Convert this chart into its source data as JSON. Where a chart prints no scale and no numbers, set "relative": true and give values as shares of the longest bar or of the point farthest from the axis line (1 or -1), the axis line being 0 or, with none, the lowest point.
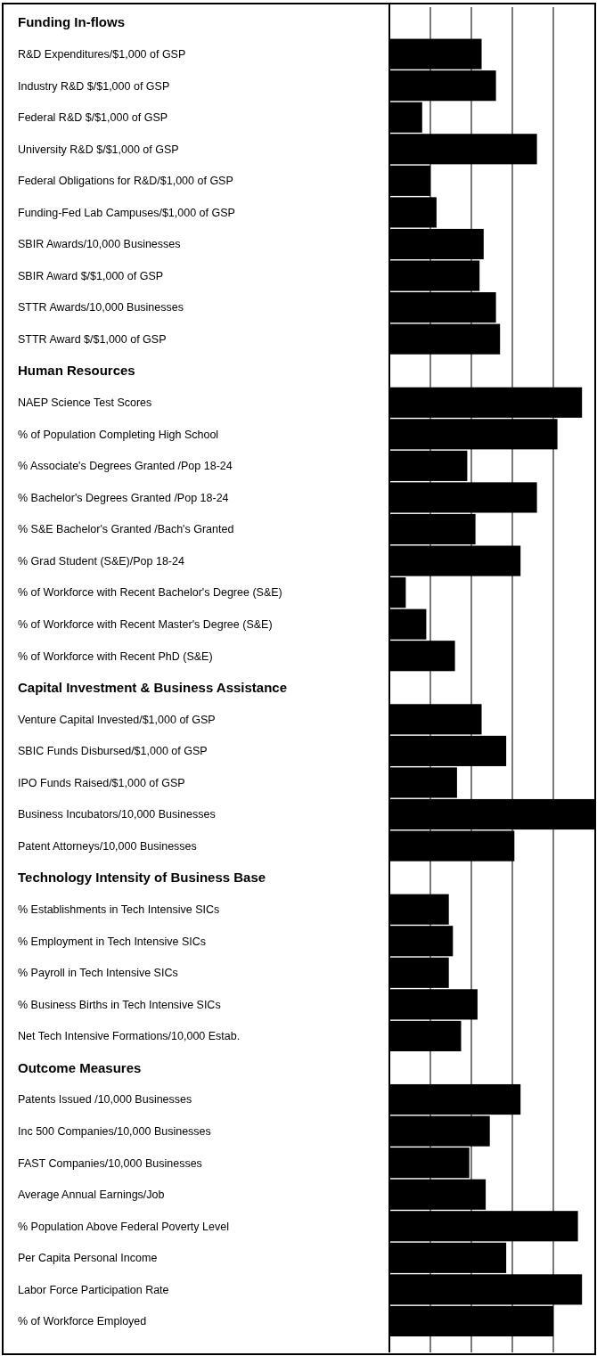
{
  "chart_data": {
    "type": "bar",
    "orientation": "horizontal",
    "relative": true,
    "grid": "x",
    "color": "#000000",
    "categories": [
      "Funding In-flows",
      "R&D Expenditures/$1,000 of GSP",
      "Industry R&D $/$1,000 of GSP",
      "Federal R&D $/$1,000 of GSP",
      "University R&D $/$1,000 of GSP",
      "Federal Obligations for R&D/$1,000 of GSP",
      "Funding-Fed Lab Campuses/$1,000 of GSP",
      "SBIR Awards/10,000 Businesses",
      "SBIR Award $/$1,000 of GSP",
      "STTR Awards/10,000 Businesses",
      "STTR Award $/$1,000 of GSP",
      "Human Resources",
      "NAEP Science Test Scores",
      "% of Population Completing High School",
      "% Associate's Degrees Granted /Pop 18-24",
      "% Bachelor's Degrees Granted /Pop 18-24",
      "% S&E Bachelor's Granted /Bach's Granted",
      "% Grad Student (S&E)/Pop 18-24",
      "% of Workforce with Recent Bachelor's Degree (S&E)",
      "% of Workforce with Recent Master's Degree (S&E)",
      "% of Workforce with Recent PhD (S&E)",
      "Capital Investment & Business Assistance",
      "Venture Capital Invested/$1,000 of GSP",
      "SBIC Funds Disbursed/$1,000 of GSP",
      "IPO Funds Raised/$1,000 of GSP",
      "Business Incubators/10,000 Businesses",
      "Patent Attorneys/10,000 Businesses",
      "Technology Intensity of Business Base",
      "% Establishments in Tech Intensive SICs",
      "% Employment in Tech Intensive SICs",
      "% Payroll in Tech Intensive SICs",
      "% Business Births in Tech Intensive SICs",
      "Net Tech Intensive Formations/10,000 Estab.",
      "Outcome Measures",
      "Patents Issued /10,000 Businesses",
      "Inc 500 Companies/10,000 Businesses",
      "FAST Companies/10,000 Businesses",
      "Average Annual Earnings/Job",
      "% Population Above Federal Poverty Level",
      "Per Capita Personal Income",
      "Labor Force Participation Rate",
      "% of Workforce Employed"
    ],
    "values": [
      null,
      0.45,
      0.52,
      0.16,
      0.72,
      0.2,
      0.23,
      0.46,
      0.44,
      0.52,
      0.54,
      null,
      0.94,
      0.82,
      0.38,
      0.72,
      0.42,
      0.64,
      0.08,
      0.18,
      0.32,
      null,
      0.45,
      0.57,
      0.33,
      1.0,
      0.61,
      null,
      0.29,
      0.31,
      0.29,
      0.43,
      0.35,
      null,
      0.64,
      0.49,
      0.39,
      0.47,
      0.92,
      0.57,
      0.94,
      0.8
    ]
  }
}
